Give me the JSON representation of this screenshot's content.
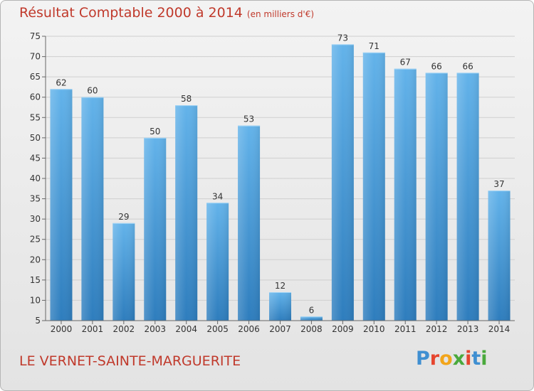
{
  "title": "Résultat Comptable 2000 à 2014",
  "subtitle": "(en milliers d'€)",
  "location": "LE VERNET-SAINTE-MARGUERITE",
  "logo": {
    "text": "Proxiti",
    "letter_colors": [
      "#3f8fd1",
      "#e6452e",
      "#f2a51b",
      "#4aa93c",
      "#e6452e",
      "#3f8fd1",
      "#4aa93c"
    ]
  },
  "colors": {
    "bar_light": "#63b3ea",
    "bar_dark": "#2e7dbd",
    "title": "#c0392b",
    "grid": "#cfcfcf"
  },
  "chart_data": {
    "type": "bar",
    "title": "Résultat Comptable 2000 à 2014",
    "subtitle": "(en milliers d'€)",
    "xlabel": "",
    "ylabel": "",
    "categories": [
      "2000",
      "2001",
      "2002",
      "2003",
      "2004",
      "2005",
      "2006",
      "2007",
      "2008",
      "2009",
      "2010",
      "2011",
      "2012",
      "2013",
      "2014"
    ],
    "values": [
      62,
      60,
      29,
      50,
      58,
      34,
      53,
      12,
      6,
      73,
      71,
      67,
      66,
      66,
      37
    ],
    "ylim": [
      5,
      75
    ],
    "yticks": [
      5,
      10,
      15,
      20,
      25,
      30,
      35,
      40,
      45,
      50,
      55,
      60,
      65,
      70,
      75
    ],
    "grid": true,
    "data_labels": true
  }
}
